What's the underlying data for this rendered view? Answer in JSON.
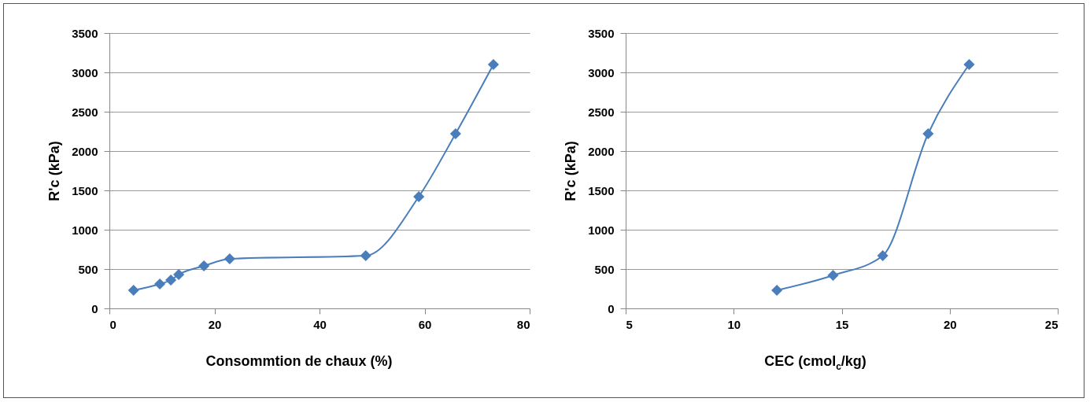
{
  "chart_data": [
    {
      "type": "line",
      "xlabel": "Consommtion de chaux (%)",
      "ylabel": "R'c (kPa)",
      "xlim": [
        0,
        80
      ],
      "xticks": [
        0,
        20,
        40,
        60,
        80
      ],
      "ylim": [
        0,
        3500
      ],
      "yticks": [
        0,
        500,
        1000,
        1500,
        2000,
        2500,
        3000,
        3500
      ],
      "grid": "y",
      "legend": false,
      "marker": "diamond",
      "line_style": "solid",
      "x": [
        4.6,
        9.6,
        11.7,
        13.2,
        18,
        22.9,
        48.8,
        58.9,
        65.9,
        73.1
      ],
      "series": [
        {
          "color": "#4a7ebb",
          "values": [
            230,
            310,
            360,
            430,
            540,
            630,
            670,
            1420,
            2220,
            3100
          ]
        }
      ]
    },
    {
      "type": "line",
      "xlabel": "CEC (cmol$_{c}$/kg)",
      "ylabel": "R'c (kPa)",
      "xlim": [
        5,
        25
      ],
      "xticks": [
        5,
        10,
        15,
        20,
        25
      ],
      "ylim": [
        0,
        3500
      ],
      "yticks": [
        0,
        500,
        1000,
        1500,
        2000,
        2500,
        3000,
        3500
      ],
      "grid": "y",
      "legend": false,
      "marker": "diamond",
      "line_style": "solid",
      "x": [
        12.0,
        14.6,
        16.9,
        19.0,
        20.9
      ],
      "series": [
        {
          "color": "#4a7ebb",
          "values": [
            230,
            420,
            670,
            2220,
            3100
          ]
        }
      ]
    }
  ]
}
